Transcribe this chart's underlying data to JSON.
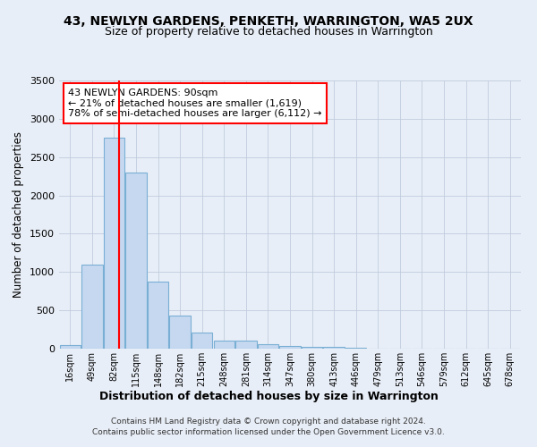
{
  "title": "43, NEWLYN GARDENS, PENKETH, WARRINGTON, WA5 2UX",
  "subtitle": "Size of property relative to detached houses in Warrington",
  "xlabel": "Distribution of detached houses by size in Warrington",
  "ylabel": "Number of detached properties",
  "footnote1": "Contains HM Land Registry data © Crown copyright and database right 2024.",
  "footnote2": "Contains public sector information licensed under the Open Government Licence v3.0.",
  "bar_values": [
    50,
    1100,
    2750,
    2300,
    880,
    430,
    205,
    110,
    100,
    55,
    40,
    25,
    20,
    15,
    0,
    0,
    0,
    0,
    0,
    0,
    0
  ],
  "bar_color": "#c5d8f0",
  "bar_edge_color": "#7aafd4",
  "annotation_text": "43 NEWLYN GARDENS: 90sqm\n← 21% of detached houses are smaller (1,619)\n78% of semi-detached houses are larger (6,112) →",
  "annotation_box_color": "white",
  "annotation_border_color": "red",
  "ylim": [
    0,
    3500
  ],
  "background_color": "#e8eef7",
  "grid_color": "#c0ccdd",
  "title_fontsize": 10,
  "subtitle_fontsize": 9,
  "all_bin_labels": [
    "16sqm",
    "49sqm",
    "82sqm",
    "115sqm",
    "148sqm",
    "182sqm",
    "215sqm",
    "248sqm",
    "281sqm",
    "314sqm",
    "347sqm",
    "380sqm",
    "413sqm",
    "446sqm",
    "479sqm",
    "513sqm",
    "546sqm",
    "579sqm",
    "612sqm",
    "645sqm",
    "678sqm"
  ]
}
